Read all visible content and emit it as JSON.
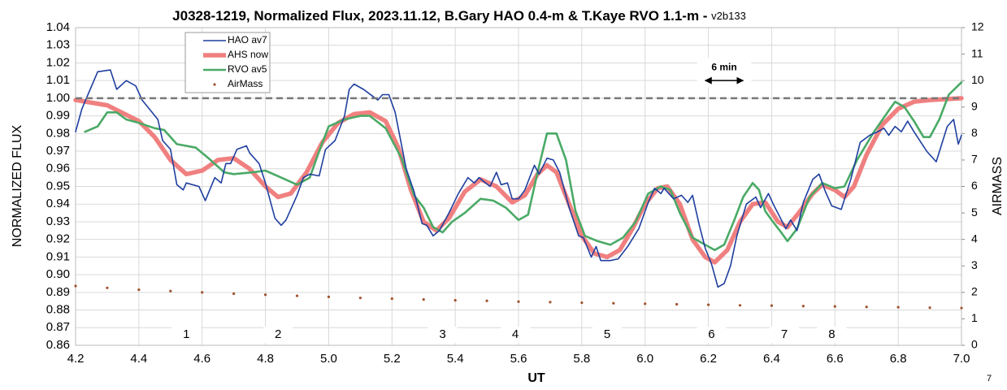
{
  "chart_data": {
    "type": "line",
    "title": "J0328-1219, Normalized Flux, 2023.11.12, B.Gary HAO 0.4-m & T.Kaye RVO 1.1-m - ",
    "version": "v2b133",
    "xlabel": "UT",
    "ylabel": "NORMALIZED FLUX",
    "y2label": "AIRMASS",
    "page_label": "7",
    "xlim": [
      4.2,
      7.0
    ],
    "ylim": [
      0.86,
      1.04
    ],
    "y2lim": [
      0,
      12
    ],
    "xticks": [
      4.2,
      4.4,
      4.6,
      4.8,
      {
        "value": 5,
        "label": "5.0"
      },
      5.2,
      5.4,
      5.6,
      5.8,
      {
        "value": 6,
        "label": "6.0"
      },
      6.2,
      6.4,
      6.6,
      6.8,
      {
        "value": 7,
        "label": "7.0"
      }
    ],
    "yticks": [
      {
        "value": 0.86,
        "label": "0.86"
      },
      {
        "value": 0.87,
        "label": "0.87"
      },
      {
        "value": 0.88,
        "label": "0.88"
      },
      {
        "value": 0.89,
        "label": "0.89"
      },
      {
        "value": 0.9,
        "label": "0.90"
      },
      {
        "value": 0.91,
        "label": "0.91"
      },
      {
        "value": 0.92,
        "label": "0.92"
      },
      {
        "value": 0.93,
        "label": "0.93"
      },
      {
        "value": 0.94,
        "label": "0.94"
      },
      {
        "value": 0.95,
        "label": "0.95"
      },
      {
        "value": 0.96,
        "label": "0.96"
      },
      {
        "value": 0.97,
        "label": "0.97"
      },
      {
        "value": 0.98,
        "label": "0.98"
      },
      {
        "value": 0.99,
        "label": "0.99"
      },
      {
        "value": 1,
        "label": "1.00"
      },
      {
        "value": 1.01,
        "label": "1.01"
      },
      {
        "value": 1.02,
        "label": "1.02"
      },
      {
        "value": 1.03,
        "label": "1.03"
      },
      {
        "value": 1.04,
        "label": "1.04"
      }
    ],
    "y2ticks": [
      0,
      1,
      2,
      3,
      4,
      5,
      6,
      7,
      8,
      9,
      10,
      11,
      12
    ],
    "grid": true,
    "legend": "upper left",
    "reference_line": 1.0,
    "series": [
      {
        "name": "HAO av7",
        "color": "#1f3f9f",
        "x": [
          4.2,
          4.22,
          4.27,
          4.31,
          4.33,
          4.36,
          4.39,
          4.41,
          4.46,
          4.475,
          4.5,
          4.52,
          4.54,
          4.55,
          4.59,
          4.61,
          4.64,
          4.66,
          4.675,
          4.69,
          4.71,
          4.74,
          4.75,
          4.78,
          4.8,
          4.83,
          4.85,
          4.865,
          4.885,
          4.9,
          4.92,
          4.94,
          4.97,
          4.99,
          5.02,
          5.05,
          5.065,
          5.08,
          5.11,
          5.14,
          5.155,
          5.17,
          5.19,
          5.21,
          5.245,
          5.27,
          5.295,
          5.31,
          5.33,
          5.35,
          5.38,
          5.41,
          5.44,
          5.46,
          5.475,
          5.51,
          5.53,
          5.545,
          5.565,
          5.58,
          5.6,
          5.62,
          5.65,
          5.665,
          5.69,
          5.71,
          5.73,
          5.76,
          5.79,
          5.805,
          5.83,
          5.845,
          5.86,
          5.89,
          5.915,
          5.945,
          5.98,
          6.01,
          6.03,
          6.05,
          6.06,
          6.09,
          6.115,
          6.135,
          6.15,
          6.17,
          6.19,
          6.21,
          6.23,
          6.25,
          6.27,
          6.29,
          6.32,
          6.35,
          6.365,
          6.39,
          6.405,
          6.425,
          6.445,
          6.46,
          6.48,
          6.5,
          6.53,
          6.55,
          6.57,
          6.59,
          6.62,
          6.65,
          6.68,
          6.71,
          6.735,
          6.755,
          6.77,
          6.79,
          6.81,
          6.83,
          6.85,
          6.89,
          6.92,
          6.955,
          6.975,
          6.99,
          7.0
        ],
        "values": [
          0.981,
          0.994,
          1.015,
          1.016,
          1.005,
          1.01,
          1.007,
          0.999,
          0.988,
          0.976,
          0.971,
          0.951,
          0.948,
          0.952,
          0.95,
          0.942,
          0.955,
          0.952,
          0.963,
          0.963,
          0.971,
          0.973,
          0.969,
          0.963,
          0.952,
          0.932,
          0.928,
          0.931,
          0.939,
          0.945,
          0.955,
          0.957,
          0.956,
          0.971,
          0.976,
          0.99,
          1.005,
          1.008,
          1.005,
          1.001,
          0.999,
          1.002,
          1.002,
          0.992,
          0.96,
          0.947,
          0.929,
          0.928,
          0.922,
          0.925,
          0.935,
          0.946,
          0.955,
          0.952,
          0.955,
          0.95,
          0.958,
          0.951,
          0.952,
          0.943,
          0.943,
          0.948,
          0.962,
          0.957,
          0.966,
          0.965,
          0.958,
          0.938,
          0.922,
          0.921,
          0.91,
          0.916,
          0.908,
          0.908,
          0.909,
          0.916,
          0.926,
          0.941,
          0.949,
          0.946,
          0.949,
          0.943,
          0.945,
          0.941,
          0.945,
          0.929,
          0.915,
          0.906,
          0.893,
          0.895,
          0.905,
          0.922,
          0.94,
          0.944,
          0.938,
          0.946,
          0.94,
          0.933,
          0.926,
          0.931,
          0.925,
          0.941,
          0.954,
          0.957,
          0.947,
          0.939,
          0.937,
          0.954,
          0.975,
          0.979,
          0.981,
          0.983,
          0.979,
          0.984,
          0.981,
          0.987,
          0.981,
          0.97,
          0.964,
          0.984,
          0.988,
          0.974,
          0.979
        ]
      },
      {
        "name": "AHS now",
        "color": "#f08080",
        "x": [
          4.2,
          4.3,
          4.4,
          4.45,
          4.5,
          4.55,
          4.6,
          4.65,
          4.7,
          4.75,
          4.8,
          4.84,
          4.88,
          4.93,
          4.98,
          5.03,
          5.08,
          5.13,
          5.18,
          5.22,
          5.26,
          5.3,
          5.34,
          5.38,
          5.43,
          5.48,
          5.53,
          5.58,
          5.62,
          5.66,
          5.69,
          5.72,
          5.76,
          5.8,
          5.84,
          5.88,
          5.92,
          5.96,
          6.0,
          6.04,
          6.07,
          6.11,
          6.15,
          6.19,
          6.22,
          6.26,
          6.3,
          6.34,
          6.38,
          6.42,
          6.45,
          6.49,
          6.53,
          6.56,
          6.6,
          6.63,
          6.66,
          6.7,
          6.75,
          6.8,
          6.85,
          6.9,
          7.0
        ],
        "values": [
          0.999,
          0.996,
          0.987,
          0.978,
          0.965,
          0.957,
          0.959,
          0.965,
          0.966,
          0.96,
          0.95,
          0.944,
          0.946,
          0.958,
          0.975,
          0.986,
          0.991,
          0.992,
          0.987,
          0.972,
          0.948,
          0.93,
          0.925,
          0.932,
          0.947,
          0.954,
          0.95,
          0.941,
          0.945,
          0.957,
          0.962,
          0.958,
          0.94,
          0.922,
          0.912,
          0.91,
          0.914,
          0.926,
          0.94,
          0.949,
          0.95,
          0.94,
          0.92,
          0.91,
          0.907,
          0.914,
          0.93,
          0.94,
          0.941,
          0.93,
          0.927,
          0.936,
          0.946,
          0.951,
          0.948,
          0.944,
          0.95,
          0.968,
          0.985,
          0.994,
          0.998,
          0.999,
          1.0
        ]
      },
      {
        "name": "RVO av5",
        "color": "#4aaa66",
        "x": [
          4.23,
          4.27,
          4.3,
          4.33,
          4.36,
          4.4,
          4.45,
          4.48,
          4.52,
          4.58,
          4.62,
          4.67,
          4.7,
          4.76,
          4.8,
          4.85,
          4.9,
          4.94,
          4.97,
          5.0,
          5.05,
          5.1,
          5.13,
          5.18,
          5.23,
          5.27,
          5.3,
          5.33,
          5.36,
          5.39,
          5.43,
          5.48,
          5.52,
          5.56,
          5.6,
          5.63,
          5.66,
          5.69,
          5.72,
          5.75,
          5.78,
          5.81,
          5.85,
          5.89,
          5.93,
          5.97,
          6.01,
          6.05,
          6.08,
          6.11,
          6.15,
          6.19,
          6.22,
          6.25,
          6.28,
          6.31,
          6.34,
          6.36,
          6.38,
          6.4,
          6.43,
          6.45,
          6.48,
          6.52,
          6.56,
          6.6,
          6.63,
          6.67,
          6.72,
          6.77,
          6.79,
          6.82,
          6.85,
          6.88,
          6.9,
          6.93,
          6.96,
          7.0
        ],
        "values": [
          0.981,
          0.984,
          0.992,
          0.992,
          0.988,
          0.986,
          0.983,
          0.982,
          0.974,
          0.972,
          0.966,
          0.958,
          0.957,
          0.958,
          0.959,
          0.955,
          0.951,
          0.955,
          0.97,
          0.984,
          0.988,
          0.99,
          0.99,
          0.983,
          0.966,
          0.945,
          0.938,
          0.927,
          0.924,
          0.93,
          0.935,
          0.943,
          0.942,
          0.938,
          0.931,
          0.934,
          0.958,
          0.98,
          0.98,
          0.965,
          0.936,
          0.922,
          0.919,
          0.917,
          0.921,
          0.93,
          0.946,
          0.95,
          0.948,
          0.935,
          0.921,
          0.917,
          0.914,
          0.917,
          0.93,
          0.944,
          0.952,
          0.948,
          0.936,
          0.931,
          0.924,
          0.919,
          0.926,
          0.944,
          0.952,
          0.949,
          0.95,
          0.965,
          0.98,
          0.993,
          0.998,
          0.995,
          0.987,
          0.978,
          0.978,
          0.988,
          1.002,
          1.009
        ]
      },
      {
        "name": "AirMass",
        "color": "#a0522d",
        "axis": "y2",
        "marker": "dots",
        "x": [
          4.2,
          4.3,
          4.4,
          4.5,
          4.6,
          4.7,
          4.8,
          4.9,
          5.0,
          5.1,
          5.2,
          5.3,
          5.4,
          5.5,
          5.6,
          5.7,
          5.8,
          5.9,
          6.0,
          6.1,
          6.2,
          6.3,
          6.4,
          6.5,
          6.6,
          6.7,
          6.8,
          6.9,
          7.0
        ],
        "values": [
          2.24,
          2.17,
          2.1,
          2.05,
          2.0,
          1.95,
          1.91,
          1.87,
          1.83,
          1.79,
          1.76,
          1.73,
          1.7,
          1.68,
          1.65,
          1.63,
          1.61,
          1.59,
          1.57,
          1.55,
          1.53,
          1.51,
          1.5,
          1.48,
          1.47,
          1.45,
          1.44,
          1.42,
          1.41
        ]
      }
    ],
    "annotations": [
      {
        "label": "1",
        "x": 4.55
      },
      {
        "label": "2",
        "x": 4.84
      },
      {
        "label": "3",
        "x": 5.36
      },
      {
        "label": "4",
        "x": 5.59
      },
      {
        "label": "5",
        "x": 5.88
      },
      {
        "label": "6",
        "x": 6.21
      },
      {
        "label": "7",
        "x": 6.44
      },
      {
        "label": "8",
        "x": 6.59
      }
    ],
    "arrow_annotation": {
      "label": "6 min",
      "x": [
        6.19,
        6.31
      ],
      "y": 1.01
    }
  }
}
